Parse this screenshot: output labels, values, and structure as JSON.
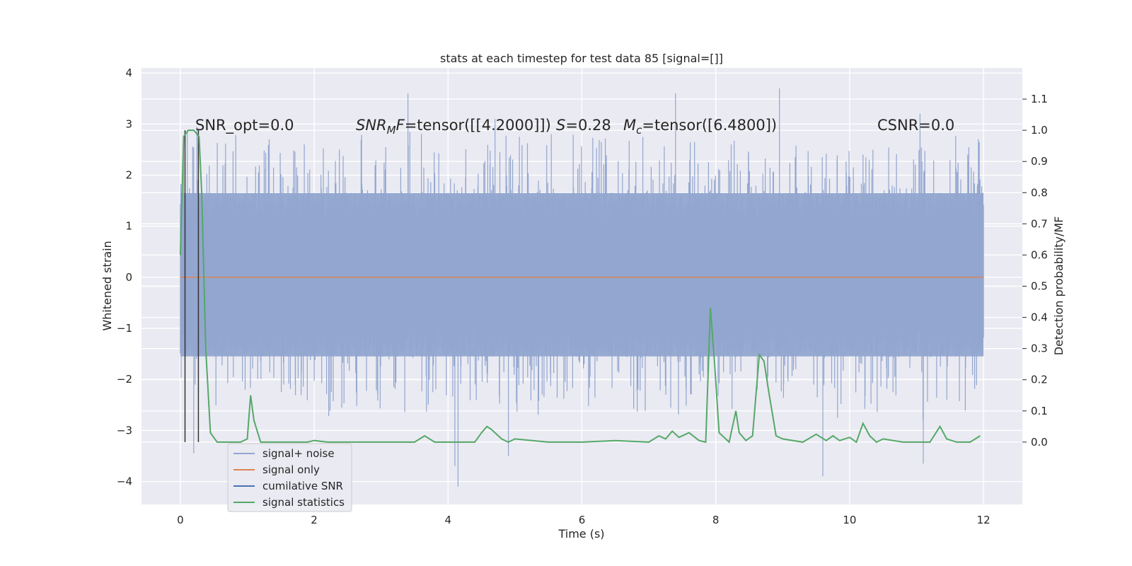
{
  "chart_data": {
    "type": "line",
    "title": "stats at each timestep for test data 85 [signal=[]]",
    "xlabel": "Time (s)",
    "ylabel_left": "Whitened strain",
    "ylabel_right": "Detection probability/MF",
    "xlim": [
      -0.58,
      12.58
    ],
    "ylim_left": [
      -4.45,
      4.1
    ],
    "ylim_right": [
      -0.2,
      1.2
    ],
    "xticks": [
      0,
      2,
      4,
      6,
      8,
      10,
      12
    ],
    "yticks_left": [
      -4,
      -3,
      -2,
      -1,
      0,
      1,
      2,
      3,
      4
    ],
    "yticks_right": [
      0.0,
      0.1,
      0.2,
      0.3,
      0.4,
      0.5,
      0.6,
      0.7,
      0.8,
      0.9,
      1.0,
      1.1
    ],
    "grid": true,
    "legend_position": "lower left",
    "annotations": {
      "snr_opt": "SNR_opt=0.0",
      "snr_mf": "=tensor([[4.2000]])",
      "snr_mf_symbol": "SNR",
      "snr_mf_sub": "M",
      "snr_mf_tail": "F",
      "s_symbol": "S",
      "s_value": "=0.28",
      "mc_symbol": "M",
      "mc_sub": "c",
      "mc_value": "=tensor([6.4800])",
      "csnr": "CSNR=0.0"
    },
    "series": [
      {
        "name": "signal+ noise",
        "color": "#92a6cf",
        "axis": "left",
        "x_range": [
          0,
          12
        ],
        "core_envelope": [
          -1.55,
          1.65
        ],
        "spike_extremes": [
          {
            "x": 0.2,
            "y": -3.45
          },
          {
            "x": 4.1,
            "y": -3.7
          },
          {
            "x": 4.15,
            "y": -4.1
          },
          {
            "x": 4.9,
            "y": -3.5
          },
          {
            "x": 9.6,
            "y": -3.9
          },
          {
            "x": 11.1,
            "y": -3.65
          },
          {
            "x": 3.4,
            "y": 3.6
          },
          {
            "x": 7.4,
            "y": 3.6
          },
          {
            "x": 8.95,
            "y": 3.7
          },
          {
            "x": 0.25,
            "y": 2.95
          },
          {
            "x": 11.05,
            "y": 3.2
          },
          {
            "x": 4.7,
            "y": 3.1
          }
        ]
      },
      {
        "name": "signal only",
        "color": "#dd8452",
        "axis": "left",
        "x": [
          0,
          12
        ],
        "y": [
          0,
          0
        ]
      },
      {
        "name": "cumilative SNR",
        "color": "#4c72b0",
        "axis": "left",
        "x": [],
        "y": []
      },
      {
        "name": "signal statistics",
        "color": "#55a868",
        "axis": "right",
        "x": [
          0,
          0.05,
          0.12,
          0.2,
          0.28,
          0.32,
          0.38,
          0.45,
          0.55,
          0.7,
          0.9,
          1.0,
          1.05,
          1.1,
          1.2,
          1.5,
          1.9,
          2.0,
          2.2,
          3.0,
          3.5,
          3.65,
          3.8,
          4.2,
          4.4,
          4.5,
          4.58,
          4.65,
          4.8,
          4.9,
          5.0,
          5.5,
          6.0,
          6.5,
          7.0,
          7.15,
          7.25,
          7.35,
          7.45,
          7.6,
          7.75,
          7.85,
          7.92,
          7.98,
          8.05,
          8.2,
          8.3,
          8.35,
          8.45,
          8.55,
          8.65,
          8.72,
          8.8,
          8.9,
          9.0,
          9.3,
          9.5,
          9.65,
          9.75,
          9.85,
          10.0,
          10.1,
          10.2,
          10.3,
          10.4,
          10.5,
          10.8,
          11.0,
          11.2,
          11.35,
          11.45,
          11.6,
          11.8,
          11.95
        ],
        "y": [
          0.6,
          0.98,
          1.0,
          1.0,
          0.98,
          0.8,
          0.3,
          0.03,
          0.0,
          0.0,
          0.0,
          0.01,
          0.15,
          0.07,
          0.0,
          0.0,
          0.0,
          0.005,
          0.0,
          0.0,
          0.0,
          0.02,
          0.0,
          0.0,
          0.0,
          0.03,
          0.05,
          0.04,
          0.01,
          0.0,
          0.01,
          0.0,
          0.0,
          0.005,
          0.0,
          0.02,
          0.01,
          0.035,
          0.015,
          0.03,
          0.005,
          0.0,
          0.43,
          0.26,
          0.03,
          0.0,
          0.1,
          0.03,
          0.005,
          0.02,
          0.28,
          0.26,
          0.15,
          0.02,
          0.01,
          0.0,
          0.025,
          0.005,
          0.02,
          0.005,
          0.015,
          0.0,
          0.06,
          0.02,
          0.0,
          0.01,
          0.0,
          0.0,
          0.0,
          0.05,
          0.01,
          0.0,
          0.0,
          0.02
        ]
      }
    ],
    "vertical_markers": [
      {
        "x": 0.07,
        "color": "#333333"
      },
      {
        "x": 0.27,
        "color": "#333333"
      }
    ]
  }
}
